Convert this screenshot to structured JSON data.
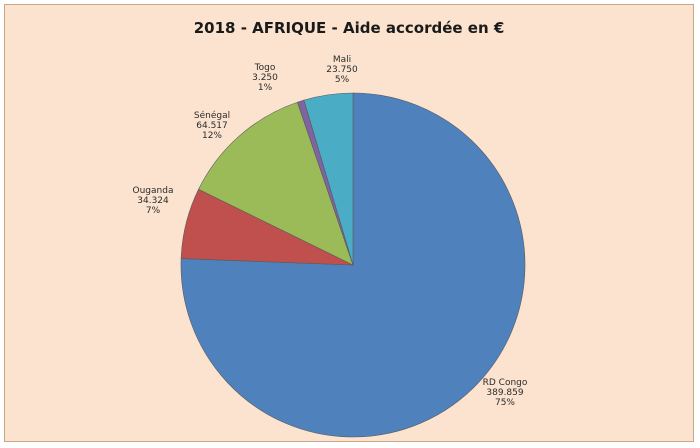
{
  "chart_data": {
    "type": "pie",
    "title": "2018 - AFRIQUE - Aide accordée en €",
    "slices": [
      {
        "name": "RD Congo",
        "value_label": "389.859",
        "pct_label": "75%",
        "value": 389859,
        "color": "#4f81bd"
      },
      {
        "name": "Ouganda",
        "value_label": "34.324",
        "pct_label": "7%",
        "value": 34324,
        "color": "#c0504d"
      },
      {
        "name": "Sénégal",
        "value_label": "64.517",
        "pct_label": "12%",
        "value": 64517,
        "color": "#9bbb59"
      },
      {
        "name": "Togo",
        "value_label": "3.250",
        "pct_label": "1%",
        "value": 3250,
        "color": "#8064a2"
      },
      {
        "name": "Mali",
        "value_label": "23.750",
        "pct_label": "5%",
        "value": 23750,
        "color": "#4bacc6"
      }
    ]
  }
}
